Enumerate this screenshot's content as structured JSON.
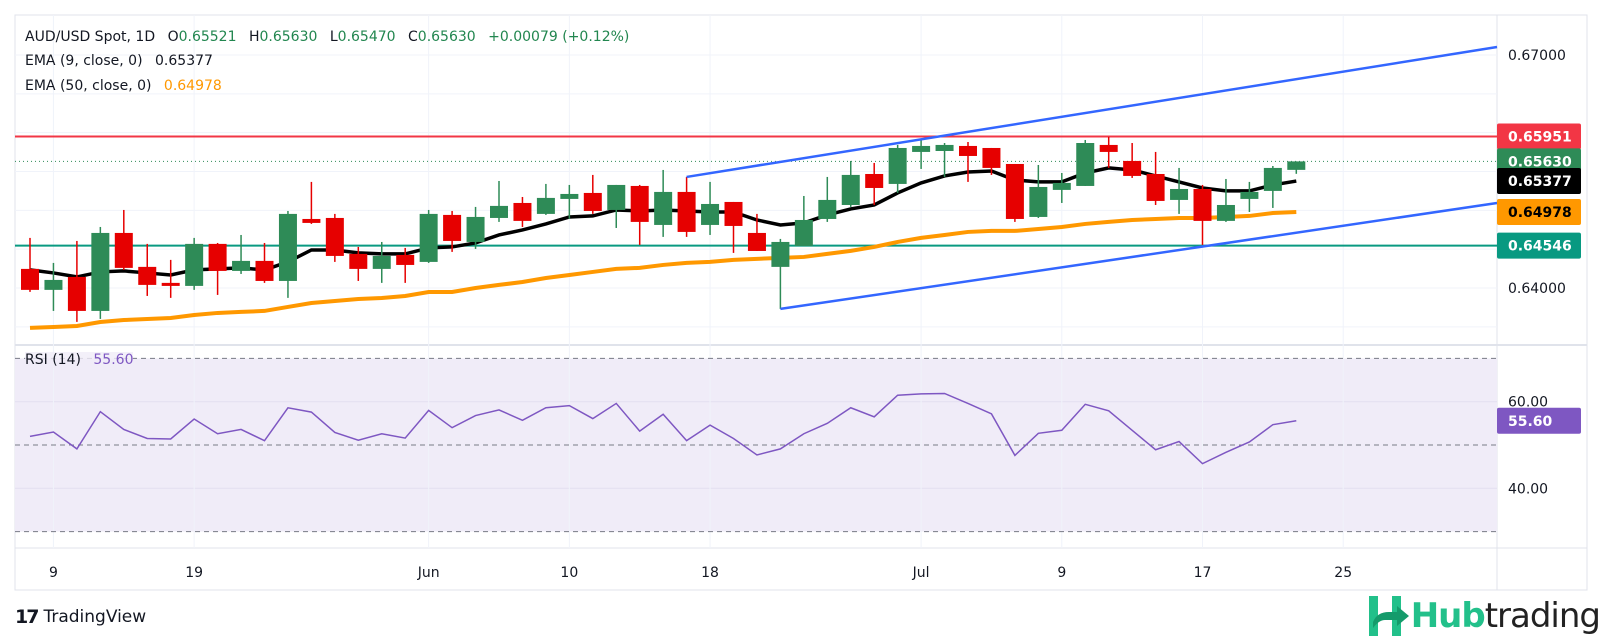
{
  "header": {
    "symbol": "AUD/USD Spot, 1D",
    "ohlc": [
      {
        "k": "O",
        "v": "0.65521"
      },
      {
        "k": "H",
        "v": "0.65630"
      },
      {
        "k": "L",
        "v": "0.65470"
      },
      {
        "k": "C",
        "v": "0.65630"
      }
    ],
    "change": "+0.00079 (+0.12%)",
    "ema9_label": "EMA (9, close, 0)",
    "ema9_value": "0.65377",
    "ema50_label": "EMA (50, close, 0)",
    "ema50_value": "0.64978",
    "rsi_label": "RSI (14)",
    "rsi_value": "55.60"
  },
  "branding": {
    "tradingview": "TradingView",
    "hub_a": "Hub",
    "hub_b": "trading"
  },
  "colors": {
    "up": "#2e8b57",
    "down": "#e60000",
    "ema9": "#000000",
    "ema50": "#ff9800",
    "trendline": "#3366ff",
    "resistance": "#f23645",
    "support": "#089981",
    "rsi": "#7e57c2",
    "rsi_band": "#f0ecf8"
  },
  "chart_data": [
    {
      "type": "candlestick",
      "title": "AUD/USD Spot, 1D",
      "ylim": [
        0.6335,
        0.6722
      ],
      "grid": true,
      "yticks": [
        "0.67000",
        "0.64000"
      ],
      "xticks": [
        {
          "label": "9",
          "bar": 2
        },
        {
          "label": "19",
          "bar": 8
        },
        {
          "label": "Jun",
          "bar": 18
        },
        {
          "label": "10",
          "bar": 24
        },
        {
          "label": "18",
          "bar": 30
        },
        {
          "label": "Jul",
          "bar": 39
        },
        {
          "label": "9",
          "bar": 45
        },
        {
          "label": "17",
          "bar": 51
        },
        {
          "label": "25",
          "bar": 57
        }
      ],
      "candles": [
        [
          0.64246,
          0.64645,
          0.6395,
          0.63976
        ],
        [
          0.63976,
          0.64323,
          0.63705,
          0.64104
        ],
        [
          0.64143,
          0.64606,
          0.63564,
          0.63705
        ],
        [
          0.63705,
          0.64786,
          0.63602,
          0.64709
        ],
        [
          0.64709,
          0.65005,
          0.64233,
          0.64259
        ],
        [
          0.64272,
          0.64568,
          0.63898,
          0.6404
        ],
        [
          0.64066,
          0.64362,
          0.63873,
          0.64027
        ],
        [
          0.64027,
          0.64645,
          0.63976,
          0.64568
        ],
        [
          0.64568,
          0.6458,
          0.63911,
          0.6422
        ],
        [
          0.6422,
          0.64683,
          0.64181,
          0.64349
        ],
        [
          0.64349,
          0.6458,
          0.64066,
          0.64091
        ],
        [
          0.64091,
          0.64992,
          0.63873,
          0.64954
        ],
        [
          0.64889,
          0.65366,
          0.64825,
          0.64838
        ],
        [
          0.64902,
          0.64954,
          0.64336,
          0.64413
        ],
        [
          0.64439,
          0.64529,
          0.64091,
          0.64246
        ],
        [
          0.64246,
          0.64593,
          0.64066,
          0.64413
        ],
        [
          0.64426,
          0.64516,
          0.64066,
          0.64297
        ],
        [
          0.64336,
          0.65005,
          0.64323,
          0.64954
        ],
        [
          0.64941,
          0.64992,
          0.64465,
          0.64606
        ],
        [
          0.64593,
          0.65044,
          0.64503,
          0.64915
        ],
        [
          0.64902,
          0.65378,
          0.64851,
          0.65057
        ],
        [
          0.65095,
          0.65172,
          0.64786,
          0.64864
        ],
        [
          0.64954,
          0.6534,
          0.64941,
          0.6516
        ],
        [
          0.65147,
          0.65327,
          0.64889,
          0.65211
        ],
        [
          0.65224,
          0.65456,
          0.64954,
          0.64992
        ],
        [
          0.65005,
          0.65327,
          0.64773,
          0.65327
        ],
        [
          0.65314,
          0.65327,
          0.64555,
          0.64851
        ],
        [
          0.64812,
          0.6552,
          0.64658,
          0.65237
        ],
        [
          0.65237,
          0.6543,
          0.64658,
          0.64722
        ],
        [
          0.64812,
          0.65366,
          0.64683,
          0.65082
        ],
        [
          0.65108,
          0.65108,
          0.64452,
          0.64799
        ],
        [
          0.64709,
          0.64954,
          0.64477,
          0.64477
        ],
        [
          0.64272,
          0.64632,
          0.63731,
          0.64593
        ],
        [
          0.64542,
          0.65185,
          0.64542,
          0.64876
        ],
        [
          0.64889,
          0.6543,
          0.64851,
          0.65134
        ],
        [
          0.65069,
          0.65636,
          0.65044,
          0.65456
        ],
        [
          0.65468,
          0.6561,
          0.65069,
          0.65288
        ],
        [
          0.6534,
          0.65842,
          0.65224,
          0.65803
        ],
        [
          0.65752,
          0.65906,
          0.65533,
          0.65829
        ],
        [
          0.65764,
          0.65867,
          0.6543,
          0.65842
        ],
        [
          0.65829,
          0.6588,
          0.65366,
          0.657
        ],
        [
          0.65803,
          0.65803,
          0.65456,
          0.65546
        ],
        [
          0.65597,
          0.65597,
          0.64851,
          0.64889
        ],
        [
          0.64915,
          0.65584,
          0.64902,
          0.65301
        ],
        [
          0.65263,
          0.65481,
          0.65095,
          0.65353
        ],
        [
          0.65314,
          0.65906,
          0.65314,
          0.65867
        ],
        [
          0.65842,
          0.65945,
          0.65546,
          0.65752
        ],
        [
          0.65636,
          0.65867,
          0.65417,
          0.65443
        ],
        [
          0.65468,
          0.65752,
          0.65069,
          0.65121
        ],
        [
          0.65134,
          0.65546,
          0.64954,
          0.65275
        ],
        [
          0.65275,
          0.65327,
          0.64555,
          0.64864
        ],
        [
          0.64864,
          0.65404,
          0.64851,
          0.65069
        ],
        [
          0.65147,
          0.65366,
          0.64979,
          0.65237
        ],
        [
          0.6525,
          0.65571,
          0.65031,
          0.65546
        ],
        [
          0.65521,
          0.6563,
          0.6547,
          0.6563
        ]
      ],
      "ema9": [
        0.64233,
        0.64194,
        0.64143,
        0.64207,
        0.6422,
        0.64194,
        0.64168,
        0.64233,
        0.64246,
        0.64259,
        0.64233,
        0.64336,
        0.6449,
        0.6449,
        0.64452,
        0.64439,
        0.64439,
        0.64516,
        0.64529,
        0.6458,
        0.64683,
        0.64748,
        0.64825,
        0.64915,
        0.64928,
        0.65005,
        0.64992,
        0.65005,
        0.64992,
        0.64979,
        0.64979,
        0.64876,
        0.64812,
        0.64838,
        0.64941,
        0.65018,
        0.65069,
        0.65224,
        0.65353,
        0.65443,
        0.65494,
        0.65507,
        0.65391,
        0.65366,
        0.65366,
        0.65481,
        0.65546,
        0.6552,
        0.65443,
        0.65366,
        0.65288,
        0.6525,
        0.6525,
        0.65327,
        0.65377
      ],
      "ema50": [
        0.63486,
        0.63498,
        0.63511,
        0.63562,
        0.63588,
        0.63601,
        0.63614,
        0.63653,
        0.63679,
        0.63692,
        0.63705,
        0.63756,
        0.63807,
        0.63833,
        0.63859,
        0.63871,
        0.63897,
        0.63949,
        0.63949,
        0.64,
        0.6404,
        0.64077,
        0.64129,
        0.64168,
        0.64207,
        0.64246,
        0.64259,
        0.64297,
        0.64323,
        0.64336,
        0.64362,
        0.64375,
        0.64388,
        0.644,
        0.64439,
        0.64478,
        0.64529,
        0.64593,
        0.64645,
        0.64683,
        0.64722,
        0.64735,
        0.64735,
        0.6476,
        0.64786,
        0.64825,
        0.64851,
        0.64876,
        0.64889,
        0.64902,
        0.64902,
        0.64915,
        0.64928,
        0.64966,
        0.64978
      ],
      "hlines": [
        {
          "label": "0.65951",
          "value": 0.65951,
          "color": "#f23645",
          "style": "solid"
        },
        {
          "label": "0.64546",
          "value": 0.64546,
          "color": "#089981",
          "style": "solid"
        }
      ],
      "last_price": {
        "label": "0.65630",
        "value": 0.6563,
        "color": "#2e8b57"
      },
      "price_badges": [
        {
          "label": "0.65377",
          "value": 0.65377,
          "bg": "#000000",
          "fg": "#ffffff"
        },
        {
          "label": "0.64978",
          "value": 0.64978,
          "bg": "#ff9800",
          "fg": "#000000"
        }
      ],
      "trendlines": [
        {
          "from": {
            "bar": 29,
            "price": 0.6543
          },
          "to": {
            "bar": 63.56,
            "price": 0.67103
          }
        },
        {
          "from": {
            "bar": 33,
            "price": 0.63731
          },
          "to": {
            "bar": 63.56,
            "price": 0.65094
          }
        }
      ]
    },
    {
      "type": "line",
      "title": "RSI (14)",
      "ylim": [
        25,
        73
      ],
      "band": [
        30,
        70
      ],
      "dashed_levels": [
        70,
        50,
        30
      ],
      "yticks": [
        "60.00",
        "40.00"
      ],
      "last_label": "55.60",
      "values": [
        52.0,
        53.0,
        49.1,
        57.7,
        53.6,
        51.5,
        51.4,
        56.0,
        52.6,
        53.6,
        51.0,
        58.6,
        57.6,
        52.9,
        51.1,
        52.6,
        51.6,
        58.0,
        54.0,
        56.8,
        58.1,
        55.7,
        58.6,
        59.1,
        56.1,
        59.6,
        53.2,
        57.1,
        51.0,
        54.6,
        51.5,
        47.7,
        49.1,
        52.6,
        55.0,
        58.6,
        56.5,
        61.5,
        61.8,
        61.9,
        59.6,
        57.2,
        47.6,
        52.7,
        53.4,
        59.4,
        57.9,
        53.4,
        48.9,
        50.8,
        45.7,
        48.3,
        50.7,
        54.7,
        55.6
      ]
    }
  ]
}
